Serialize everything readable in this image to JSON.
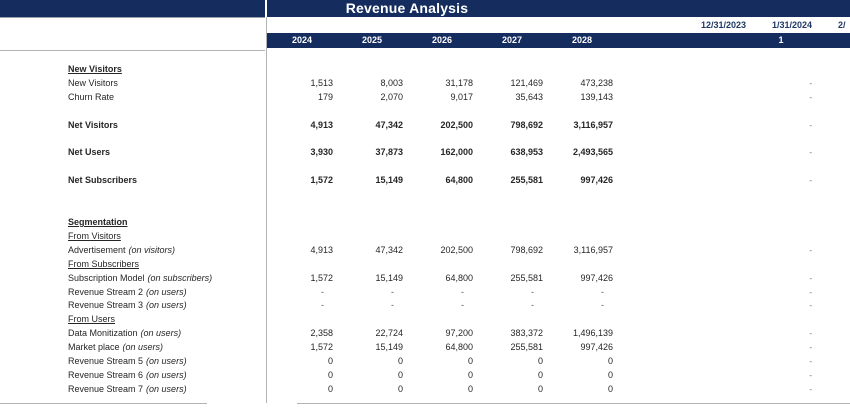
{
  "title": "Revenue Analysis",
  "colors": {
    "navy": "#152C5F",
    "gridline": "#B3B3B3",
    "text": "#262626",
    "date_text": "#1F3864",
    "monthly_dash": "#55617A"
  },
  "year_columns": [
    "2024",
    "2025",
    "2026",
    "2027",
    "2028"
  ],
  "date_columns": [
    "12/31/2023",
    "1/31/2024",
    "2/"
  ],
  "month_number": "1",
  "rows": [
    {
      "label": "New Visitors",
      "suffix": "",
      "style": "header",
      "values": null,
      "monthly": ""
    },
    {
      "label": "New Visitors",
      "suffix": "",
      "style": "normal",
      "bold": false,
      "values": [
        "1,513",
        "8,003",
        "31,178",
        "121,469",
        "473,238"
      ],
      "monthly": "-"
    },
    {
      "label": "Churn Rate",
      "suffix": "",
      "style": "normal",
      "bold": false,
      "values": [
        "179",
        "2,070",
        "9,017",
        "35,643",
        "139,143"
      ],
      "monthly": "-"
    },
    {
      "label": "",
      "suffix": "",
      "style": "blank",
      "values": null,
      "monthly": ""
    },
    {
      "label": "Net Visitors",
      "suffix": "",
      "style": "bold",
      "bold": true,
      "values": [
        "4,913",
        "47,342",
        "202,500",
        "798,692",
        "3,116,957"
      ],
      "monthly": "-"
    },
    {
      "label": "",
      "suffix": "",
      "style": "blank",
      "values": null,
      "monthly": ""
    },
    {
      "label": "Net Users",
      "suffix": "",
      "style": "bold",
      "bold": true,
      "values": [
        "3,930",
        "37,873",
        "162,000",
        "638,953",
        "2,493,565"
      ],
      "monthly": "-"
    },
    {
      "label": "",
      "suffix": "",
      "style": "blank",
      "values": null,
      "monthly": ""
    },
    {
      "label": "Net Subscribers",
      "suffix": "",
      "style": "bold",
      "bold": true,
      "values": [
        "1,572",
        "15,149",
        "64,800",
        "255,581",
        "997,426"
      ],
      "monthly": "-"
    },
    {
      "label": "",
      "suffix": "",
      "style": "blank",
      "values": null,
      "monthly": ""
    },
    {
      "label": "",
      "suffix": "",
      "style": "blank",
      "values": null,
      "monthly": ""
    },
    {
      "label": "Segmentation",
      "suffix": "",
      "style": "header",
      "values": null,
      "monthly": ""
    },
    {
      "label": "From Visitors",
      "suffix": "",
      "style": "sub",
      "values": null,
      "monthly": ""
    },
    {
      "label": "Advertisement",
      "suffix": "(on visitors)",
      "style": "normal",
      "bold": false,
      "values": [
        "4,913",
        "47,342",
        "202,500",
        "798,692",
        "3,116,957"
      ],
      "monthly": "-"
    },
    {
      "label": "From Subscribers",
      "suffix": "",
      "style": "sub",
      "values": null,
      "monthly": ""
    },
    {
      "label": "Subscription Model",
      "suffix": "(on subscribers)",
      "style": "normal",
      "bold": false,
      "values": [
        "1,572",
        "15,149",
        "64,800",
        "255,581",
        "997,426"
      ],
      "monthly": "-"
    },
    {
      "label": "Revenue Stream 2",
      "suffix": "(on users)",
      "style": "normal",
      "bold": false,
      "values": [
        "-",
        "-",
        "-",
        "-",
        "-"
      ],
      "monthly": "-"
    },
    {
      "label": "Revenue Stream 3",
      "suffix": "(on users)",
      "style": "normal",
      "bold": false,
      "values": [
        "-",
        "-",
        "-",
        "-",
        "-"
      ],
      "monthly": "-"
    },
    {
      "label": "From Users",
      "suffix": "",
      "style": "sub",
      "values": null,
      "monthly": ""
    },
    {
      "label": "Data Monitization",
      "suffix": "(on users)",
      "style": "normal",
      "bold": false,
      "values": [
        "2,358",
        "22,724",
        "97,200",
        "383,372",
        "1,496,139"
      ],
      "monthly": "-"
    },
    {
      "label": "Market place",
      "suffix": "(on users)",
      "style": "normal",
      "bold": false,
      "values": [
        "1,572",
        "15,149",
        "64,800",
        "255,581",
        "997,426"
      ],
      "monthly": "-"
    },
    {
      "label": "Revenue Stream 5",
      "suffix": "(on users)",
      "style": "normal",
      "bold": false,
      "values": [
        "0",
        "0",
        "0",
        "0",
        "0"
      ],
      "monthly": "-"
    },
    {
      "label": "Revenue Stream 6",
      "suffix": "(on users)",
      "style": "normal",
      "bold": false,
      "values": [
        "0",
        "0",
        "0",
        "0",
        "0"
      ],
      "monthly": "-"
    },
    {
      "label": "Revenue Stream 7",
      "suffix": "(on users)",
      "style": "normal",
      "bold": false,
      "values": [
        "0",
        "0",
        "0",
        "0",
        "0"
      ],
      "monthly": "-"
    }
  ]
}
